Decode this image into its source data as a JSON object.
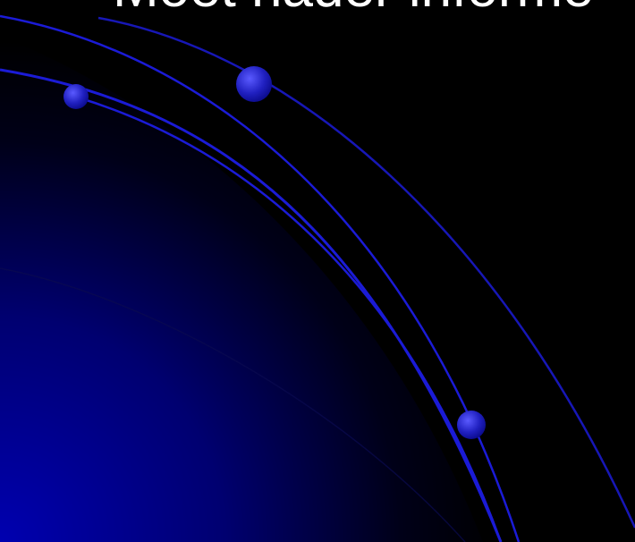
{
  "slide": {
    "title": "Moet nader informe"
  },
  "theme": {
    "background": "#000000",
    "glow": "#0000b0",
    "arc": "#1b1bd6",
    "bead_light": "#5a5aff",
    "bead_dark": "#0a0a8a",
    "title_color": "#ffffff"
  }
}
